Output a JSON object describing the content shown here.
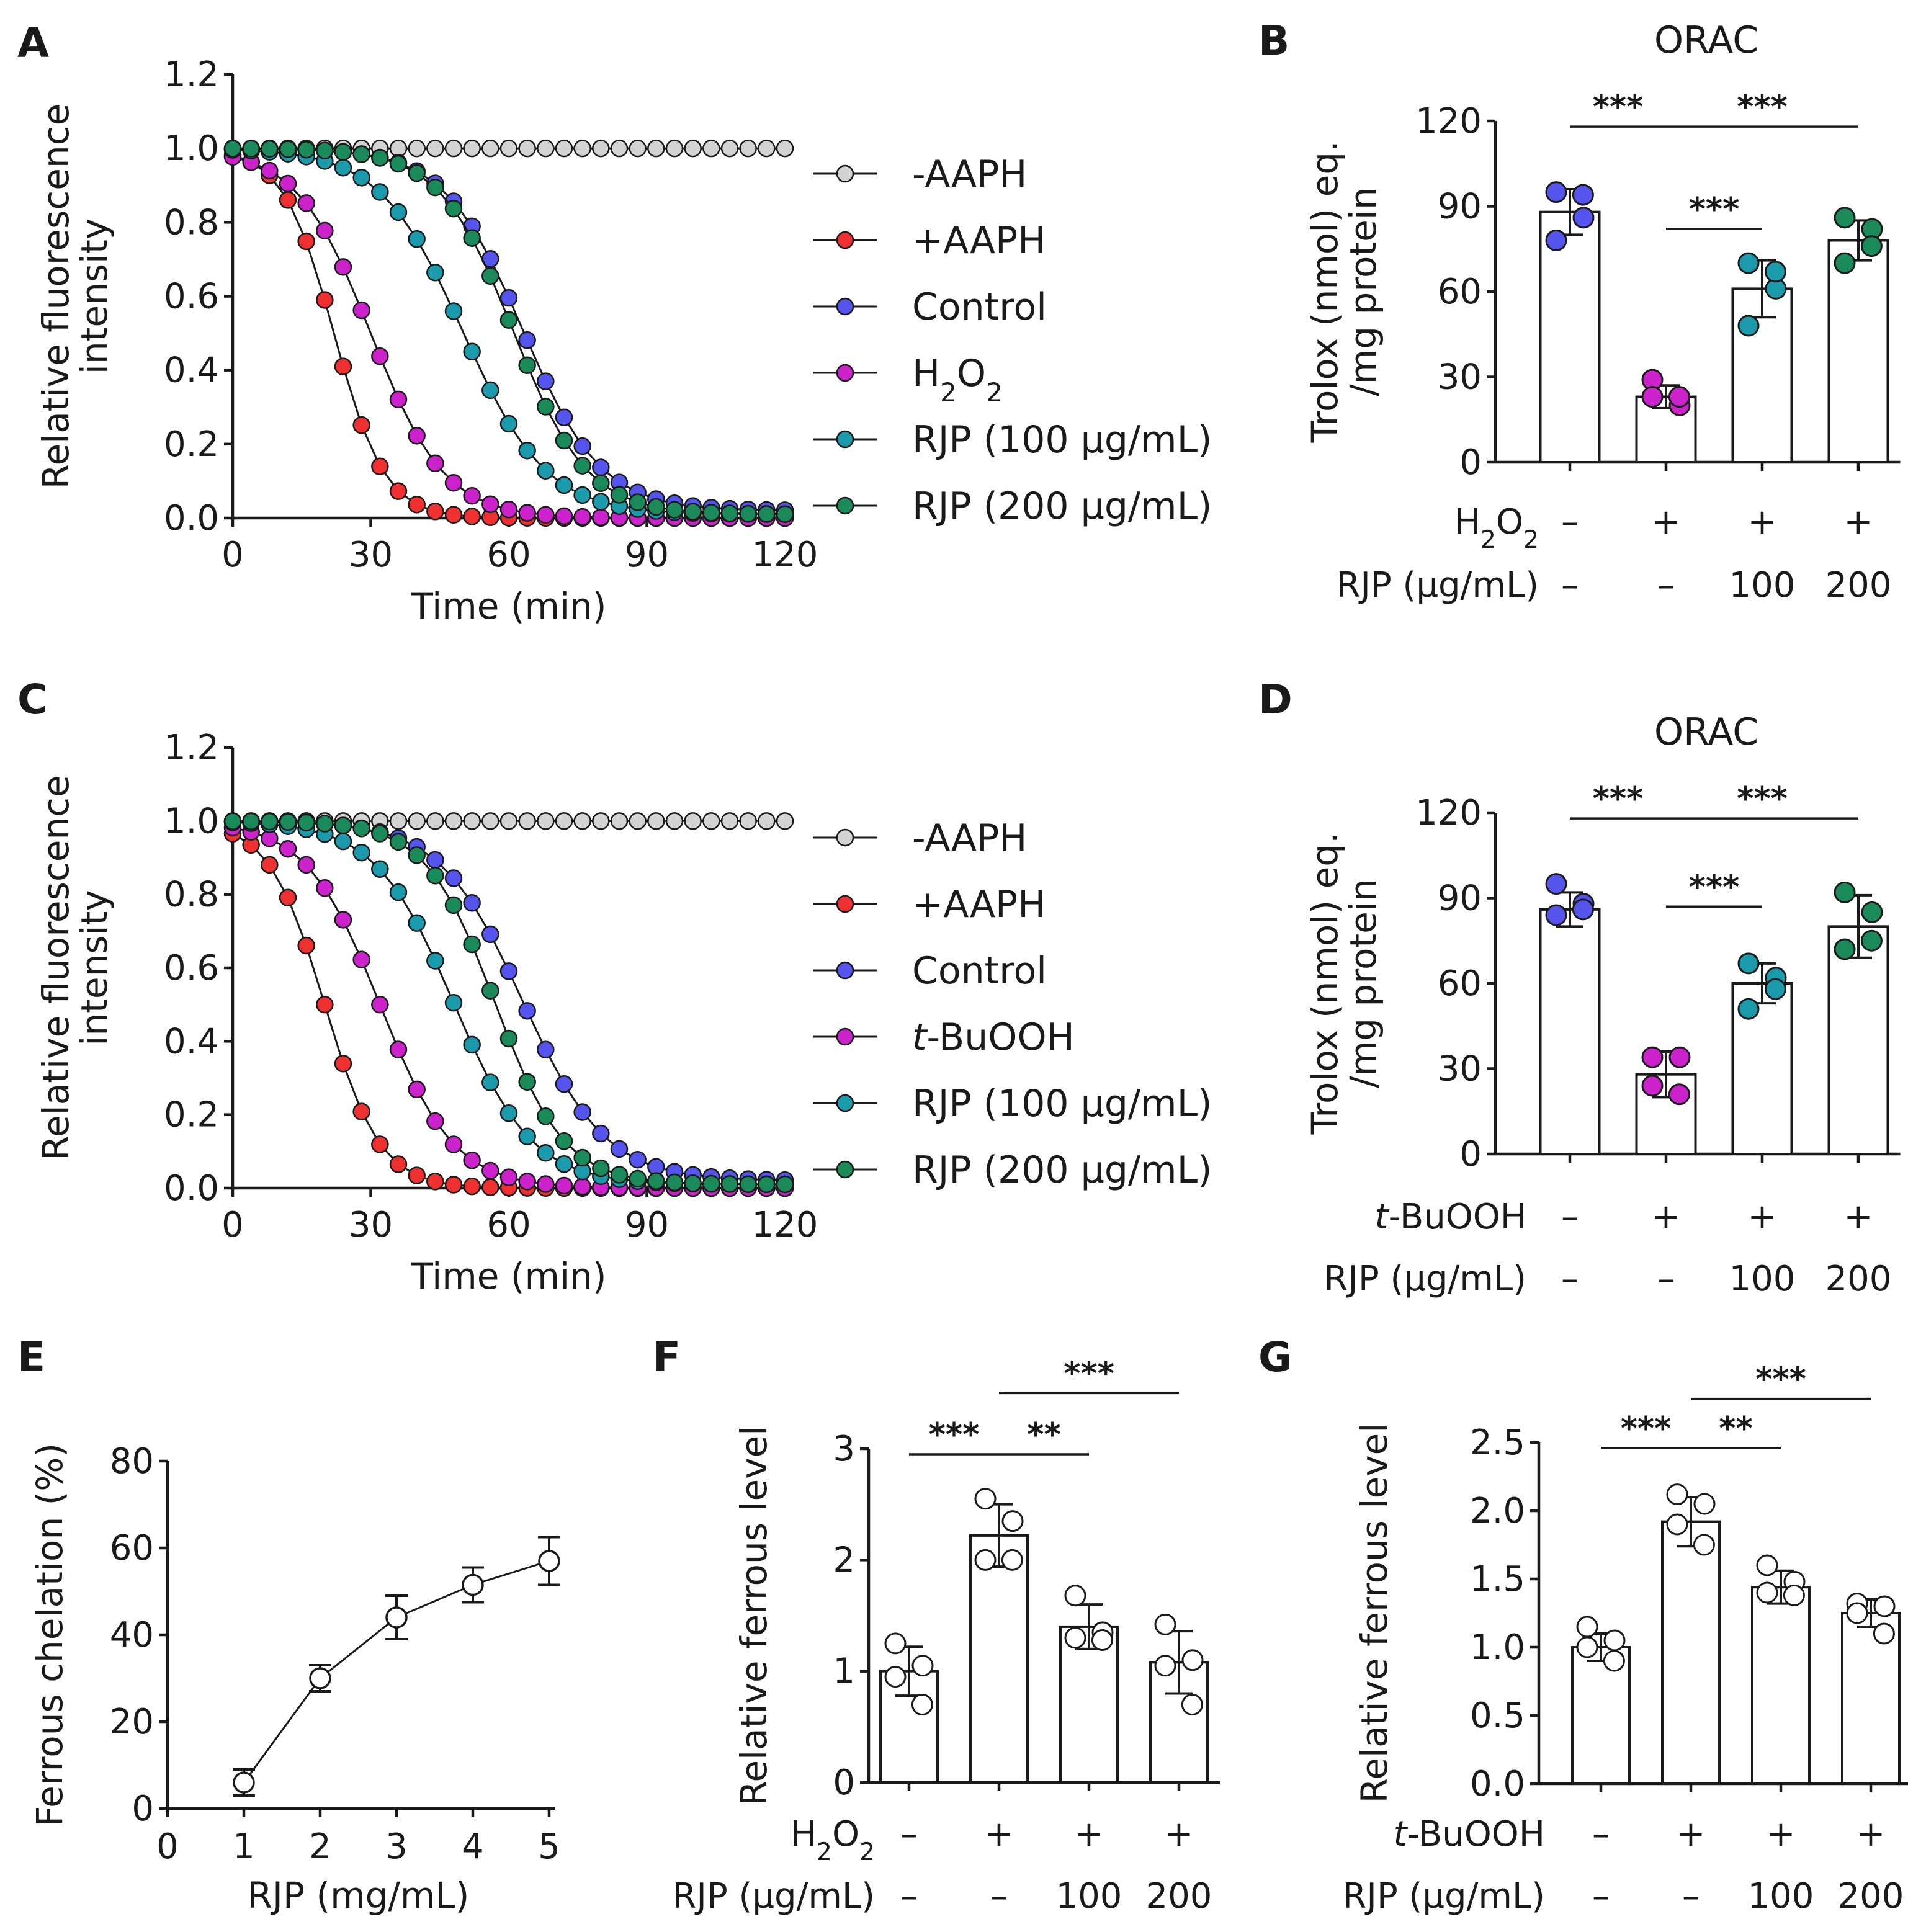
{
  "chart_data": [
    {
      "panel": "A",
      "type": "line",
      "title": "",
      "xlabel": "Time (min)",
      "ylabel": "Relative fluorescence intensity",
      "ylabel_lines": [
        "Relative fluorescence",
        "intensity"
      ],
      "xlim": [
        0,
        120
      ],
      "ylim": [
        0,
        1.2
      ],
      "xticks": [
        "0",
        "30",
        "60",
        "90",
        "120"
      ],
      "yticks": [
        "0.0",
        "0.2",
        "0.4",
        "0.6",
        "0.8",
        "1.0",
        "1.2"
      ],
      "x_start": 0,
      "x_step": 4,
      "n_points": 31,
      "series": [
        {
          "name": "-AAPH",
          "color": "#d3d3d3",
          "shape": "sigmoid",
          "mid": 999,
          "slope": 10,
          "floor": 1.0
        },
        {
          "name": "+AAPH",
          "color": "#ee3030",
          "shape": "sigmoid",
          "mid": 22,
          "slope": 5.5,
          "floor": 0.0
        },
        {
          "name": "Control",
          "color": "#5555ee",
          "shape": "sigmoid",
          "mid": 63,
          "slope": 8.5,
          "floor": 0.02
        },
        {
          "name": "H2O2",
          "label_main": "H",
          "label_sub1": "2",
          "label_mid": "O",
          "label_sub2": "2",
          "color": "#cc22cc",
          "shape": "sigmoid",
          "mid": 30,
          "slope": 8,
          "floor": 0.0
        },
        {
          "name": "RJP (100 μg/mL)",
          "color": "#1a9aaa",
          "shape": "sigmoid",
          "mid": 50,
          "slope": 9,
          "floor": 0.01
        },
        {
          "name": "RJP (200 μg/mL)",
          "color": "#1a8a5a",
          "shape": "sigmoid",
          "mid": 61,
          "slope": 8,
          "floor": 0.01
        }
      ]
    },
    {
      "panel": "B",
      "type": "bar",
      "title": "ORAC",
      "ylabel": "Trolox (nmol) eq./mg protein",
      "ylabel_lines": [
        "Trolox (nmol) eq.",
        "/mg protein"
      ],
      "ylim": [
        0,
        120
      ],
      "yticks": [
        "0",
        "30",
        "60",
        "90",
        "120"
      ],
      "treatment_label": "H2O2",
      "treatment_row": [
        "–",
        "+",
        "+",
        "+"
      ],
      "rjp_label": "RJP (μg/mL)",
      "rjp_row": [
        "–",
        "–",
        "100",
        "200"
      ],
      "bars": [
        {
          "mean": 88,
          "sd": 8,
          "color": "#5555ee",
          "points": [
            95,
            86,
            78,
            94
          ]
        },
        {
          "mean": 23,
          "sd": 4,
          "color": "#cc22cc",
          "points": [
            29,
            20,
            23,
            23
          ]
        },
        {
          "mean": 61,
          "sd": 10,
          "color": "#1a9aaa",
          "points": [
            70,
            61,
            48,
            67
          ]
        },
        {
          "mean": 78,
          "sd": 7,
          "color": "#1a8a5a",
          "points": [
            86,
            82,
            70,
            76
          ]
        }
      ],
      "significance": [
        {
          "from": 0,
          "to": 1,
          "label": "***",
          "level": 118
        },
        {
          "from": 1,
          "to": 3,
          "label": "***",
          "level": 118
        },
        {
          "from": 1,
          "to": 2,
          "label": "***",
          "level": 82
        }
      ]
    },
    {
      "panel": "C",
      "type": "line",
      "title": "",
      "xlabel": "Time (min)",
      "ylabel": "Relative fluorescence intensity",
      "ylabel_lines": [
        "Relative fluorescence",
        "intensity"
      ],
      "xlim": [
        0,
        120
      ],
      "ylim": [
        0,
        1.2
      ],
      "xticks": [
        "0",
        "30",
        "60",
        "90",
        "120"
      ],
      "yticks": [
        "0.0",
        "0.2",
        "0.4",
        "0.6",
        "0.8",
        "1.0",
        "1.2"
      ],
      "x_start": 0,
      "x_step": 4,
      "n_points": 31,
      "series": [
        {
          "name": "-AAPH",
          "color": "#d3d3d3",
          "shape": "sigmoid",
          "mid": 999,
          "slope": 10,
          "floor": 1.0
        },
        {
          "name": "+AAPH",
          "color": "#ee3030",
          "shape": "sigmoid",
          "mid": 20,
          "slope": 6,
          "floor": 0.0
        },
        {
          "name": "Control",
          "color": "#5555ee",
          "shape": "sigmoid",
          "mid": 63,
          "slope": 9,
          "floor": 0.02
        },
        {
          "name": "t-BuOOH",
          "label_italic": "t",
          "label_rest": "-BuOOH",
          "color": "#cc22cc",
          "shape": "sigmoid",
          "mid": 32,
          "slope": 8,
          "floor": 0.0
        },
        {
          "name": "RJP (100 μg/mL)",
          "color": "#1a9aaa",
          "shape": "sigmoid",
          "mid": 48,
          "slope": 8.5,
          "floor": 0.01
        },
        {
          "name": "RJP (200 μg/mL)",
          "color": "#1a8a5a",
          "shape": "sigmoid",
          "mid": 57,
          "slope": 7.5,
          "floor": 0.01
        }
      ]
    },
    {
      "panel": "D",
      "type": "bar",
      "title": "ORAC",
      "ylabel": "Trolox (nmol) eq./mg protein",
      "ylabel_lines": [
        "Trolox (nmol) eq.",
        "/mg protein"
      ],
      "ylim": [
        0,
        120
      ],
      "yticks": [
        "0",
        "30",
        "60",
        "90",
        "120"
      ],
      "treatment_label": "t-BuOOH",
      "treatment_row": [
        "–",
        "+",
        "+",
        "+"
      ],
      "rjp_label": "RJP (μg/mL)",
      "rjp_row": [
        "–",
        "–",
        "100",
        "200"
      ],
      "bars": [
        {
          "mean": 86,
          "sd": 6,
          "color": "#5555ee",
          "points": [
            95,
            88,
            84,
            86
          ]
        },
        {
          "mean": 28,
          "sd": 8,
          "color": "#cc22cc",
          "points": [
            34,
            34,
            24,
            21
          ]
        },
        {
          "mean": 60,
          "sd": 7,
          "color": "#1a9aaa",
          "points": [
            67,
            62,
            51,
            58
          ]
        },
        {
          "mean": 80,
          "sd": 11,
          "color": "#1a8a5a",
          "points": [
            92,
            85,
            72,
            75
          ]
        }
      ],
      "significance": [
        {
          "from": 0,
          "to": 1,
          "label": "***",
          "level": 118
        },
        {
          "from": 1,
          "to": 3,
          "label": "***",
          "level": 118
        },
        {
          "from": 1,
          "to": 2,
          "label": "***",
          "level": 87
        }
      ]
    },
    {
      "panel": "E",
      "type": "line",
      "title": "",
      "xlabel": "RJP (mg/mL)",
      "ylabel": "Ferrous chelation (%)",
      "xlim": [
        0,
        5
      ],
      "ylim": [
        0,
        80
      ],
      "xticks": [
        "0",
        "1",
        "2",
        "3",
        "4",
        "5"
      ],
      "yticks": [
        "0",
        "20",
        "40",
        "60",
        "80"
      ],
      "x": [
        1,
        2,
        3,
        4,
        5
      ],
      "y": [
        6,
        30,
        44,
        51.5,
        57
      ],
      "err": [
        3,
        3,
        5,
        4,
        5.5
      ]
    },
    {
      "panel": "F",
      "type": "bar",
      "title": "",
      "ylabel": "Relative ferrous level",
      "ylim": [
        0,
        3
      ],
      "yticks": [
        "0",
        "1",
        "2",
        "3"
      ],
      "treatment_label": "H2O2",
      "treatment_row": [
        "–",
        "+",
        "+",
        "+"
      ],
      "rjp_label": "RJP (μg/mL)",
      "rjp_row": [
        "–",
        "–",
        "100",
        "200"
      ],
      "bars": [
        {
          "mean": 1.0,
          "sd": 0.22,
          "color": "#ffffff",
          "points": [
            1.25,
            1.05,
            0.95,
            0.7
          ]
        },
        {
          "mean": 2.22,
          "sd": 0.28,
          "color": "#ffffff",
          "points": [
            2.55,
            2.35,
            2.0,
            2.0
          ]
        },
        {
          "mean": 1.4,
          "sd": 0.2,
          "color": "#ffffff",
          "points": [
            1.68,
            1.35,
            1.3,
            1.28
          ]
        },
        {
          "mean": 1.08,
          "sd": 0.28,
          "color": "#ffffff",
          "points": [
            1.42,
            1.1,
            1.05,
            0.7
          ]
        }
      ],
      "significance": [
        {
          "from": 0,
          "to": 1,
          "label": "***",
          "level": 2.95
        },
        {
          "from": 1,
          "to": 2,
          "label": "**",
          "level": 2.95
        },
        {
          "from": 1,
          "to": 3,
          "label": "***",
          "level": 3.5
        }
      ]
    },
    {
      "panel": "G",
      "type": "bar",
      "title": "",
      "ylabel": "Relative ferrous level",
      "ylim": [
        0,
        2.5
      ],
      "yticks": [
        "0.0",
        "0.5",
        "1.0",
        "1.5",
        "2.0",
        "2.5"
      ],
      "treatment_label": "t-BuOOH",
      "treatment_row": [
        "–",
        "+",
        "+",
        "+"
      ],
      "rjp_label": "RJP (μg/mL)",
      "rjp_row": [
        "–",
        "–",
        "100",
        "200"
      ],
      "bars": [
        {
          "mean": 1.0,
          "sd": 0.1,
          "color": "#ffffff",
          "points": [
            1.15,
            1.05,
            1.0,
            0.9
          ]
        },
        {
          "mean": 1.92,
          "sd": 0.18,
          "color": "#ffffff",
          "points": [
            2.12,
            2.05,
            1.9,
            1.75
          ]
        },
        {
          "mean": 1.44,
          "sd": 0.12,
          "color": "#ffffff",
          "points": [
            1.6,
            1.48,
            1.4,
            1.38
          ]
        },
        {
          "mean": 1.25,
          "sd": 0.1,
          "color": "#ffffff",
          "points": [
            1.32,
            1.3,
            1.25,
            1.1
          ]
        }
      ],
      "significance": [
        {
          "from": 0,
          "to": 1,
          "label": "***",
          "level": 2.46
        },
        {
          "from": 1,
          "to": 2,
          "label": "**",
          "level": 2.46
        },
        {
          "from": 1,
          "to": 3,
          "label": "***",
          "level": 2.82
        }
      ]
    }
  ]
}
